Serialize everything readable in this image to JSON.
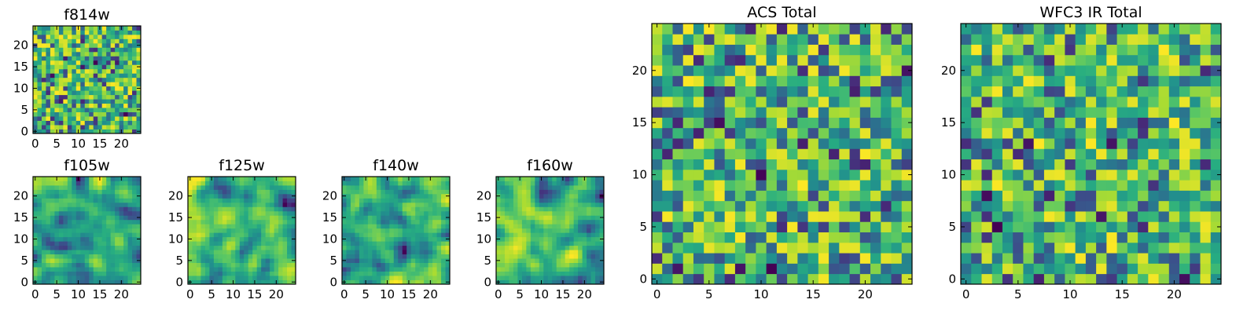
{
  "chart_data": [
    {
      "id": "f814w",
      "type": "heatmap",
      "title": "f814w",
      "grid_size": 25,
      "xlim": [
        0,
        24
      ],
      "ylim": [
        0,
        24
      ],
      "xticks": [
        0,
        5,
        10,
        15,
        20
      ],
      "yticks": [
        0,
        5,
        10,
        15,
        20
      ],
      "seed": 11,
      "smooth": 0,
      "colormap": "viridis"
    },
    {
      "id": "f105w",
      "type": "heatmap",
      "title": "f105w",
      "grid_size": 25,
      "xlim": [
        0,
        24
      ],
      "ylim": [
        0,
        24
      ],
      "xticks": [
        0,
        5,
        10,
        15,
        20
      ],
      "yticks": [
        0,
        5,
        10,
        15,
        20
      ],
      "seed": 23,
      "smooth": 2,
      "colormap": "viridis"
    },
    {
      "id": "f125w",
      "type": "heatmap",
      "title": "f125w",
      "grid_size": 25,
      "xlim": [
        0,
        24
      ],
      "ylim": [
        0,
        24
      ],
      "xticks": [
        0,
        5,
        10,
        15,
        20
      ],
      "yticks": [
        0,
        5,
        10,
        15,
        20
      ],
      "seed": 37,
      "smooth": 2,
      "colormap": "viridis"
    },
    {
      "id": "f140w",
      "type": "heatmap",
      "title": "f140w",
      "grid_size": 25,
      "xlim": [
        0,
        24
      ],
      "ylim": [
        0,
        24
      ],
      "xticks": [
        0,
        5,
        10,
        15,
        20
      ],
      "yticks": [
        0,
        5,
        10,
        15,
        20
      ],
      "seed": 41,
      "smooth": 2,
      "colormap": "viridis"
    },
    {
      "id": "f160w",
      "type": "heatmap",
      "title": "f160w",
      "grid_size": 25,
      "xlim": [
        0,
        24
      ],
      "ylim": [
        0,
        24
      ],
      "xticks": [
        0,
        5,
        10,
        15,
        20
      ],
      "yticks": [
        0,
        5,
        10,
        15,
        20
      ],
      "seed": 53,
      "smooth": 2,
      "colormap": "viridis"
    },
    {
      "id": "acs-total",
      "type": "heatmap",
      "title": "ACS Total",
      "grid_size": 25,
      "xlim": [
        0,
        24
      ],
      "ylim": [
        0,
        24
      ],
      "xticks": [
        0,
        5,
        10,
        15,
        20
      ],
      "yticks": [
        0,
        5,
        10,
        15,
        20
      ],
      "seed": 67,
      "smooth": 0,
      "colormap": "viridis"
    },
    {
      "id": "wfc3-ir-total",
      "type": "heatmap",
      "title": "WFC3 IR Total",
      "grid_size": 25,
      "xlim": [
        0,
        24
      ],
      "ylim": [
        0,
        24
      ],
      "xticks": [
        0,
        5,
        10,
        15,
        20
      ],
      "yticks": [
        0,
        5,
        10,
        15,
        20
      ],
      "seed": 79,
      "smooth": 0,
      "colormap": "viridis"
    }
  ],
  "colors": {
    "frame": "#000000",
    "background": "#ffffff"
  }
}
